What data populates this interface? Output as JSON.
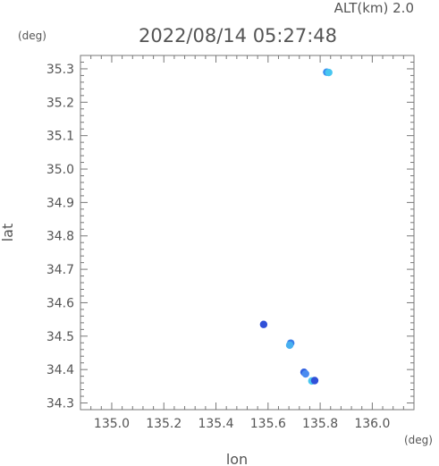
{
  "chart_data": {
    "type": "scatter",
    "title": "2022/08/14 05:27:48",
    "altitude_label": "ALT(km) 2.0",
    "xlabel": "lon",
    "ylabel": "lat",
    "x_unit": "(deg)",
    "y_unit": "(deg)",
    "xlim": [
      134.88,
      136.16
    ],
    "ylim": [
      34.28,
      35.34
    ],
    "xticks": [
      135.0,
      135.2,
      135.4,
      135.6,
      135.8,
      136.0
    ],
    "xtick_labels": [
      "135.0",
      "135.2",
      "135.4",
      "135.6",
      "135.8",
      "136.0"
    ],
    "yticks": [
      34.3,
      34.4,
      34.5,
      34.6,
      34.7,
      34.8,
      34.9,
      35.0,
      35.1,
      35.2,
      35.3
    ],
    "ytick_labels": [
      "34.3",
      "34.4",
      "34.5",
      "34.6",
      "34.7",
      "34.8",
      "34.9",
      "35.0",
      "35.1",
      "35.2",
      "35.3"
    ],
    "grid": false,
    "points": [
      {
        "x": 135.825,
        "y": 35.29,
        "color": "#3a8ef0"
      },
      {
        "x": 135.833,
        "y": 35.289,
        "color": "#48c6f0"
      },
      {
        "x": 135.583,
        "y": 34.535,
        "color": "#3050d8"
      },
      {
        "x": 135.687,
        "y": 34.479,
        "color": "#3a7ee8"
      },
      {
        "x": 135.683,
        "y": 34.473,
        "color": "#48b0f0"
      },
      {
        "x": 135.738,
        "y": 34.392,
        "color": "#3060e0"
      },
      {
        "x": 135.744,
        "y": 34.387,
        "color": "#4a8cf0"
      },
      {
        "x": 135.768,
        "y": 34.366,
        "color": "#48c6f0"
      },
      {
        "x": 135.779,
        "y": 34.367,
        "color": "#3050d8"
      }
    ]
  }
}
